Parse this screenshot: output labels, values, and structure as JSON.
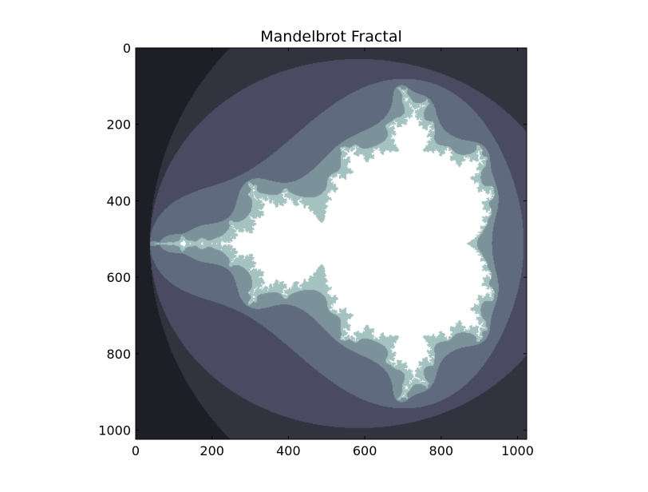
{
  "chart_data": {
    "type": "heatmap",
    "title": "Mandelbrot Fractal",
    "xlabel": "",
    "ylabel": "",
    "xlim": [
      0,
      1024
    ],
    "ylim": [
      1024,
      0
    ],
    "x_ticks": [
      0,
      200,
      400,
      600,
      800,
      1000
    ],
    "y_ticks": [
      0,
      200,
      400,
      600,
      800,
      1000
    ],
    "x_tick_labels": [
      "0",
      "200",
      "400",
      "600",
      "800",
      "1000"
    ],
    "y_tick_labels": [
      "0",
      "200",
      "400",
      "600",
      "800",
      "1000"
    ],
    "grid": false,
    "colormap": "bone",
    "fractal": {
      "re_range": [
        -2.1,
        0.7
      ],
      "im_range": [
        -1.4,
        1.4
      ],
      "resolution": 1024,
      "max_iterations": 20
    },
    "palette": [
      "#000000",
      "#1e1e27",
      "#33333f",
      "#4a4a62",
      "#5f6a7e",
      "#7b929a",
      "#a4c2c0",
      "#ffffff"
    ]
  }
}
